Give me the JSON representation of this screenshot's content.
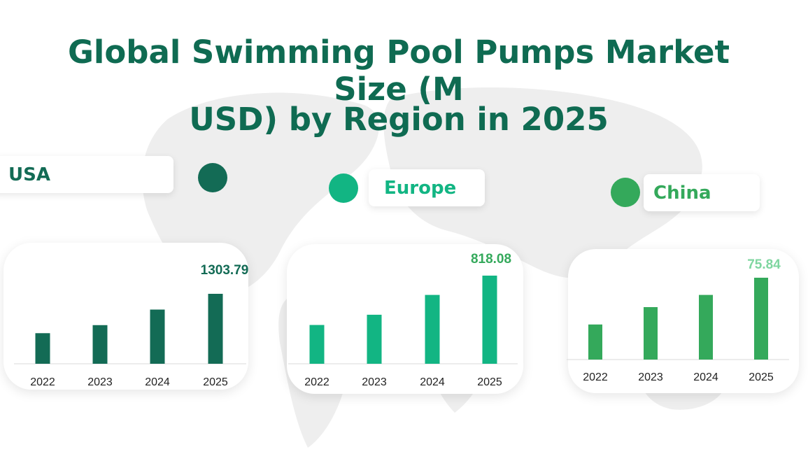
{
  "title": {
    "line1": "Global Swimming Pool Pumps Market Size (M",
    "line2": "USD) by Region in 2025"
  },
  "colors": {
    "title": "#0f6b52",
    "usa": "#136b55",
    "europe": "#12b583",
    "china": "#34a95b",
    "china_label": "#7fd6a0"
  },
  "regions": [
    {
      "name": "USA",
      "color": "#136b55",
      "label_color": "#136b55"
    },
    {
      "name": "Europe",
      "color": "#12b583",
      "label_color": "#12b583"
    },
    {
      "name": "China",
      "color": "#34a95b",
      "label_color": "#34a95b"
    }
  ],
  "chart_data": [
    {
      "type": "bar",
      "region": "USA",
      "categories": [
        "2022",
        "2023",
        "2024",
        "2025"
      ],
      "values": [
        570,
        720,
        1010,
        1303.79
      ],
      "value_label": "1303.79",
      "color": "#136b55",
      "label_color": "#136b55",
      "ylim": [
        0,
        1303.79
      ]
    },
    {
      "type": "bar",
      "region": "Europe",
      "categories": [
        "2022",
        "2023",
        "2024",
        "2025"
      ],
      "values": [
        360,
        455,
        639,
        818.08
      ],
      "value_label": "818.08",
      "color": "#12b583",
      "label_color": "#34a95b",
      "ylim": [
        0,
        818.08
      ]
    },
    {
      "type": "bar",
      "region": "China",
      "categories": [
        "2022",
        "2023",
        "2024",
        "2025"
      ],
      "values": [
        32.5,
        48.6,
        59.9,
        75.84
      ],
      "value_label": "75.84",
      "color": "#34a95b",
      "label_color": "#7fd6a0",
      "ylim": [
        0,
        75.84
      ]
    }
  ]
}
